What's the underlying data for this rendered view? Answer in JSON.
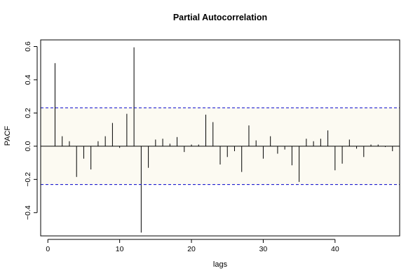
{
  "chart_data": {
    "type": "bar",
    "title": "Partial Autocorrelation",
    "xlabel": "lags",
    "ylabel": "PACF",
    "xlim": [
      -1,
      49
    ],
    "ylim": [
      -0.54,
      0.64
    ],
    "x_ticks": [
      0,
      10,
      20,
      30,
      40
    ],
    "y_ticks": [
      -0.4,
      -0.2,
      0.0,
      0.2,
      0.4,
      0.6
    ],
    "y_tick_labels": [
      "−0.4",
      "−0.2",
      "0.0",
      "0.2",
      "0.4",
      "0.6"
    ],
    "confidence_bound": 0.231,
    "lags": [
      1,
      2,
      3,
      4,
      5,
      6,
      7,
      8,
      9,
      10,
      11,
      12,
      13,
      14,
      15,
      16,
      17,
      18,
      19,
      20,
      21,
      22,
      23,
      24,
      25,
      26,
      27,
      28,
      29,
      30,
      31,
      32,
      33,
      34,
      35,
      36,
      37,
      38,
      39,
      40,
      41,
      42,
      43,
      44,
      45,
      46,
      47,
      48
    ],
    "values": [
      0.5,
      0.06,
      0.03,
      -0.185,
      -0.075,
      -0.14,
      0.03,
      0.06,
      0.14,
      -0.01,
      0.195,
      0.595,
      -0.52,
      -0.13,
      0.04,
      0.045,
      0.015,
      0.055,
      -0.035,
      0.01,
      0.01,
      0.19,
      0.145,
      -0.11,
      -0.065,
      -0.03,
      -0.155,
      0.125,
      0.035,
      -0.075,
      0.06,
      -0.045,
      -0.02,
      -0.115,
      -0.215,
      0.045,
      0.03,
      0.045,
      0.095,
      -0.145,
      -0.105,
      0.04,
      -0.015,
      -0.065,
      0.01,
      0.01,
      -0.005,
      -0.03
    ],
    "colors": {
      "spikes": "#000000",
      "confidence_lines": "#0000cc",
      "band": "#fcfaf2"
    }
  }
}
